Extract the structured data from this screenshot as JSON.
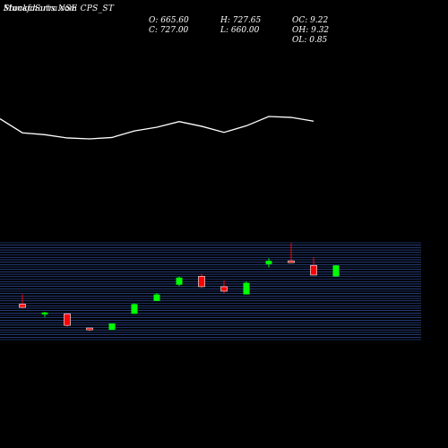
{
  "header": {
    "site": "MunafaSutra.com",
    "chart_label": "Stockcharts NSE CPS_ST"
  },
  "ohlc": {
    "open": "O: 665.60",
    "close": "C: 727.00",
    "high": "H: 727.65",
    "low": "L: 660.00",
    "oc": "OC: 9.22",
    "oh": "OH: 9.32",
    "ol": "OL: 0.85"
  },
  "colors": {
    "background": "#000000",
    "text": "#ffffff",
    "grid": "#3a5db8",
    "line": "#ffffff",
    "up": "#00ff00",
    "down": "#ff0000"
  },
  "chart_data": [
    {
      "type": "line",
      "x": [
        1,
        2,
        3,
        4,
        5,
        6,
        7,
        8,
        9,
        10,
        11,
        12,
        13,
        14,
        15
      ],
      "values": [
        590,
        560,
        556,
        549,
        547,
        550,
        564,
        572,
        584,
        574,
        561,
        575,
        595,
        593,
        585
      ],
      "grid": false
    },
    {
      "type": "candlestick",
      "x": [
        1,
        2,
        3,
        4,
        5,
        6,
        7,
        8,
        9,
        10,
        11,
        12,
        13,
        14,
        15
      ],
      "candles": [
        {
          "open": 605,
          "high": 620,
          "low": 598,
          "close": 600
        },
        {
          "open": 590,
          "high": 593,
          "low": 585,
          "close": 592
        },
        {
          "open": 590,
          "high": 590,
          "low": 570,
          "close": 572
        },
        {
          "open": 568,
          "high": 568,
          "low": 563,
          "close": 565
        },
        {
          "open": 565,
          "high": 575,
          "low": 565,
          "close": 575
        },
        {
          "open": 590,
          "high": 606,
          "low": 590,
          "close": 605
        },
        {
          "open": 610,
          "high": 622,
          "low": 610,
          "close": 620
        },
        {
          "open": 635,
          "high": 648,
          "low": 633,
          "close": 646
        },
        {
          "open": 648,
          "high": 652,
          "low": 630,
          "close": 632
        },
        {
          "open": 632,
          "high": 642,
          "low": 622,
          "close": 625
        },
        {
          "open": 620,
          "high": 640,
          "low": 620,
          "close": 638
        },
        {
          "open": 667,
          "high": 676,
          "low": 662,
          "close": 672
        },
        {
          "open": 672,
          "high": 700,
          "low": 670,
          "close": 670
        },
        {
          "open": 665,
          "high": 677,
          "low": 650,
          "close": 650
        },
        {
          "open": 648,
          "high": 665,
          "low": 648,
          "close": 665
        }
      ],
      "ylim": [
        550,
        700
      ],
      "grid": true
    }
  ]
}
